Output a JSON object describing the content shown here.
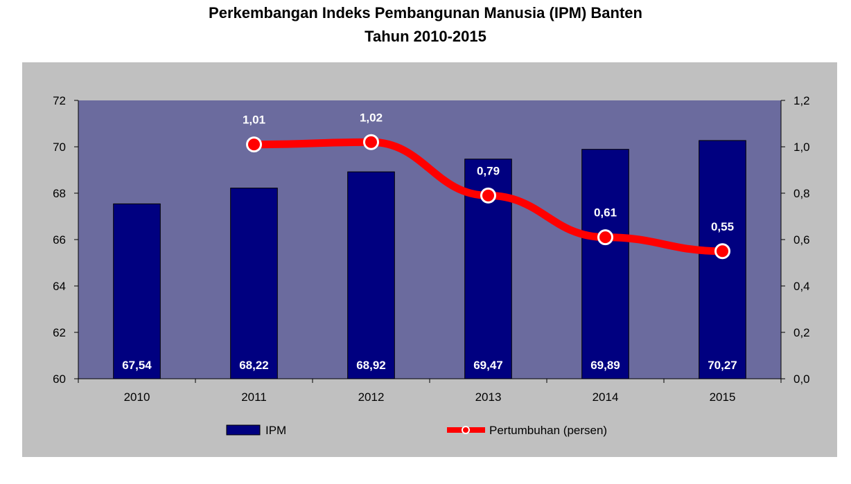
{
  "title": "Perkembangan Indeks Pembangunan Manusia (IPM) Banten",
  "subtitle": "Tahun 2010-2015",
  "colors": {
    "outer_bg": "#c0c0c0",
    "plot_bg": "#6b6b9e",
    "bar": "#000080",
    "line": "#ff0000"
  },
  "chart_data": {
    "type": "bar",
    "title": "Perkembangan Indeks Pembangunan Manusia (IPM) Banten",
    "subtitle": "Tahun 2010-2015",
    "categories": [
      "2010",
      "2011",
      "2012",
      "2013",
      "2014",
      "2015"
    ],
    "series": [
      {
        "name": "IPM",
        "type": "bar",
        "axis": "left",
        "values": [
          67.54,
          68.22,
          68.92,
          69.47,
          69.89,
          70.27
        ],
        "labels": [
          "67,54",
          "68,22",
          "68,92",
          "69,47",
          "69,89",
          "70,27"
        ]
      },
      {
        "name": "Pertumbuhan (persen)",
        "type": "line",
        "axis": "right",
        "values": [
          null,
          1.01,
          1.02,
          0.79,
          0.61,
          0.55
        ],
        "labels": [
          "",
          "1,01",
          "1,02",
          "0,79",
          "0,61",
          "0,55"
        ]
      }
    ],
    "y_left": {
      "range": [
        60,
        72
      ],
      "ticks": [
        60,
        62,
        64,
        66,
        68,
        70,
        72
      ],
      "tick_labels": [
        "60",
        "62",
        "64",
        "66",
        "68",
        "70",
        "72"
      ]
    },
    "y_right": {
      "range": [
        0,
        1.2
      ],
      "ticks": [
        0,
        0.2,
        0.4,
        0.6,
        0.8,
        1.0,
        1.2
      ],
      "tick_labels": [
        "0,0",
        "0,2",
        "0,4",
        "0,6",
        "0,8",
        "1,0",
        "1,2"
      ]
    },
    "xlabel": "",
    "ylabel": "",
    "grid": false,
    "legend": {
      "placement": "bottom",
      "entries": [
        "IPM",
        "Pertumbuhan (persen)"
      ]
    }
  }
}
